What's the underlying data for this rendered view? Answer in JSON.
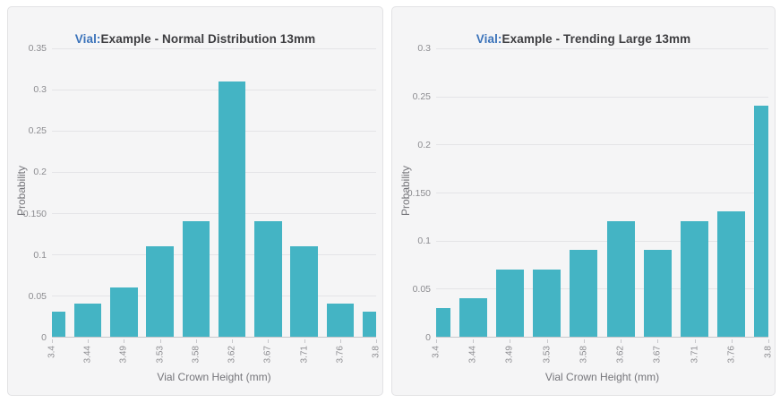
{
  "colors": {
    "bar": "#44b4c4",
    "title_prefix": "#3b73ba",
    "title_text": "#3d3d40",
    "card_background": "#f5f5f6",
    "card_border": "#e2e2e4",
    "gridline": "#e4e4e7",
    "axis_line": "#c7c7cb",
    "tick_label": "#8c8c90",
    "axis_title": "#75757a"
  },
  "chart_data": [
    {
      "type": "bar",
      "title_prefix": "Vial:",
      "title_rest": "Example - Normal Distribution 13mm",
      "title": "Vial:Example - Normal Distribution 13mm",
      "xlabel": "Vial Crown Height (mm)",
      "ylabel": "Probability",
      "categories": [
        "3.4",
        "3.44",
        "3.49",
        "3.53",
        "3.58",
        "3.62",
        "3.67",
        "3.71",
        "3.76",
        "3.8"
      ],
      "values": [
        0.03,
        0.04,
        0.06,
        0.11,
        0.14,
        0.31,
        0.14,
        0.11,
        0.04,
        0.03
      ],
      "ylim": [
        0,
        0.35
      ],
      "ytick_labels": [
        "0",
        "0.05",
        "0.1",
        "0.150",
        "0.2",
        "0.25",
        "0.3",
        "0.35"
      ],
      "ytick_values": [
        0,
        0.05,
        0.1,
        0.15,
        0.2,
        0.25,
        0.3,
        0.35
      ],
      "grid": "horizontal",
      "legend": "none"
    },
    {
      "type": "bar",
      "title_prefix": "Vial:",
      "title_rest": "Example - Trending Large 13mm",
      "title": "Vial:Example - Trending Large 13mm",
      "xlabel": "Vial Crown Height (mm)",
      "ylabel": "Probability",
      "categories": [
        "3.4",
        "3.44",
        "3.49",
        "3.53",
        "3.58",
        "3.62",
        "3.67",
        "3.71",
        "3.76",
        "3.8"
      ],
      "values": [
        0.03,
        0.04,
        0.07,
        0.07,
        0.09,
        0.12,
        0.09,
        0.12,
        0.13,
        0.24
      ],
      "ylim": [
        0,
        0.3
      ],
      "ytick_labels": [
        "0",
        "0.05",
        "0.1",
        "0.150",
        "0.2",
        "0.25",
        "0.3"
      ],
      "ytick_values": [
        0,
        0.05,
        0.1,
        0.15,
        0.2,
        0.25,
        0.3
      ],
      "grid": "horizontal",
      "legend": "none"
    }
  ]
}
